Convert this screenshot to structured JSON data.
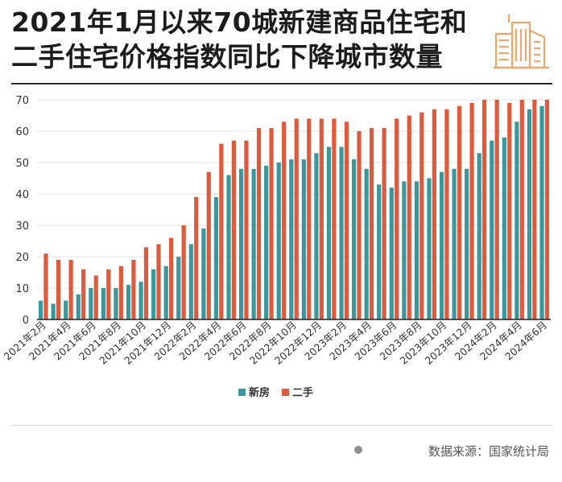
{
  "title_lines": [
    "2021年1月以来70城新建商品住宅和",
    "二手住宅价格指数同比下降城市数量"
  ],
  "source": "数据来源：国家统计局",
  "logo_icon": "building-icon",
  "colors": {
    "new": "#3a979c",
    "used": "#de5a3c",
    "accent": "#f3a46b",
    "grid": "#e3e3e3",
    "axis": "#222222"
  },
  "chart_data": {
    "type": "bar",
    "ylim": [
      0,
      70
    ],
    "yticks": [
      0,
      10,
      20,
      30,
      40,
      50,
      60,
      70
    ],
    "categories": [
      "2021年2月",
      "2021年3月",
      "2021年4月",
      "2021年5月",
      "2021年6月",
      "2021年7月",
      "2021年8月",
      "2021年9月",
      "2021年10月",
      "2021年11月",
      "2021年12月",
      "2022年1月",
      "2022年2月",
      "2022年3月",
      "2022年4月",
      "2022年5月",
      "2022年6月",
      "2022年7月",
      "2022年8月",
      "2022年9月",
      "2022年10月",
      "2022年11月",
      "2022年12月",
      "2023年1月",
      "2023年2月",
      "2023年3月",
      "2023年4月",
      "2023年5月",
      "2023年6月",
      "2023年7月",
      "2023年8月",
      "2023年9月",
      "2023年10月",
      "2023年11月",
      "2023年12月",
      "2024年1月",
      "2024年2月",
      "2024年3月",
      "2024年4月",
      "2024年5月",
      "2024年6月"
    ],
    "xtick_labels": [
      "2021年2月",
      "2021年4月",
      "2021年6月",
      "2021年8月",
      "2021年10月",
      "2021年12月",
      "2022年2月",
      "2022年4月",
      "2022年6月",
      "2022年8月",
      "2022年10月",
      "2022年12月",
      "2023年2月",
      "2023年4月",
      "2023年6月",
      "2023年8月",
      "2023年10月",
      "2023年12月",
      "2024年2月",
      "2024年4月",
      "2024年6月"
    ],
    "series": [
      {
        "name": "新房",
        "values": [
          6,
          5,
          6,
          8,
          10,
          10,
          10,
          11,
          12,
          16,
          17,
          20,
          24,
          29,
          39,
          46,
          48,
          48,
          49,
          50,
          51,
          51,
          53,
          55,
          55,
          51,
          48,
          43,
          42,
          44,
          44,
          45,
          47,
          48,
          48,
          53,
          57,
          58,
          63,
          67,
          68
        ]
      },
      {
        "name": "二手",
        "values": [
          21,
          19,
          19,
          16,
          14,
          16,
          17,
          19,
          23,
          24,
          26,
          30,
          39,
          47,
          56,
          57,
          57,
          61,
          61,
          63,
          64,
          64,
          64,
          64,
          63,
          60,
          61,
          61,
          64,
          65,
          66,
          67,
          67,
          68,
          69,
          70,
          70,
          69,
          70,
          70,
          70
        ]
      }
    ],
    "legend_position": "bottom-center"
  }
}
